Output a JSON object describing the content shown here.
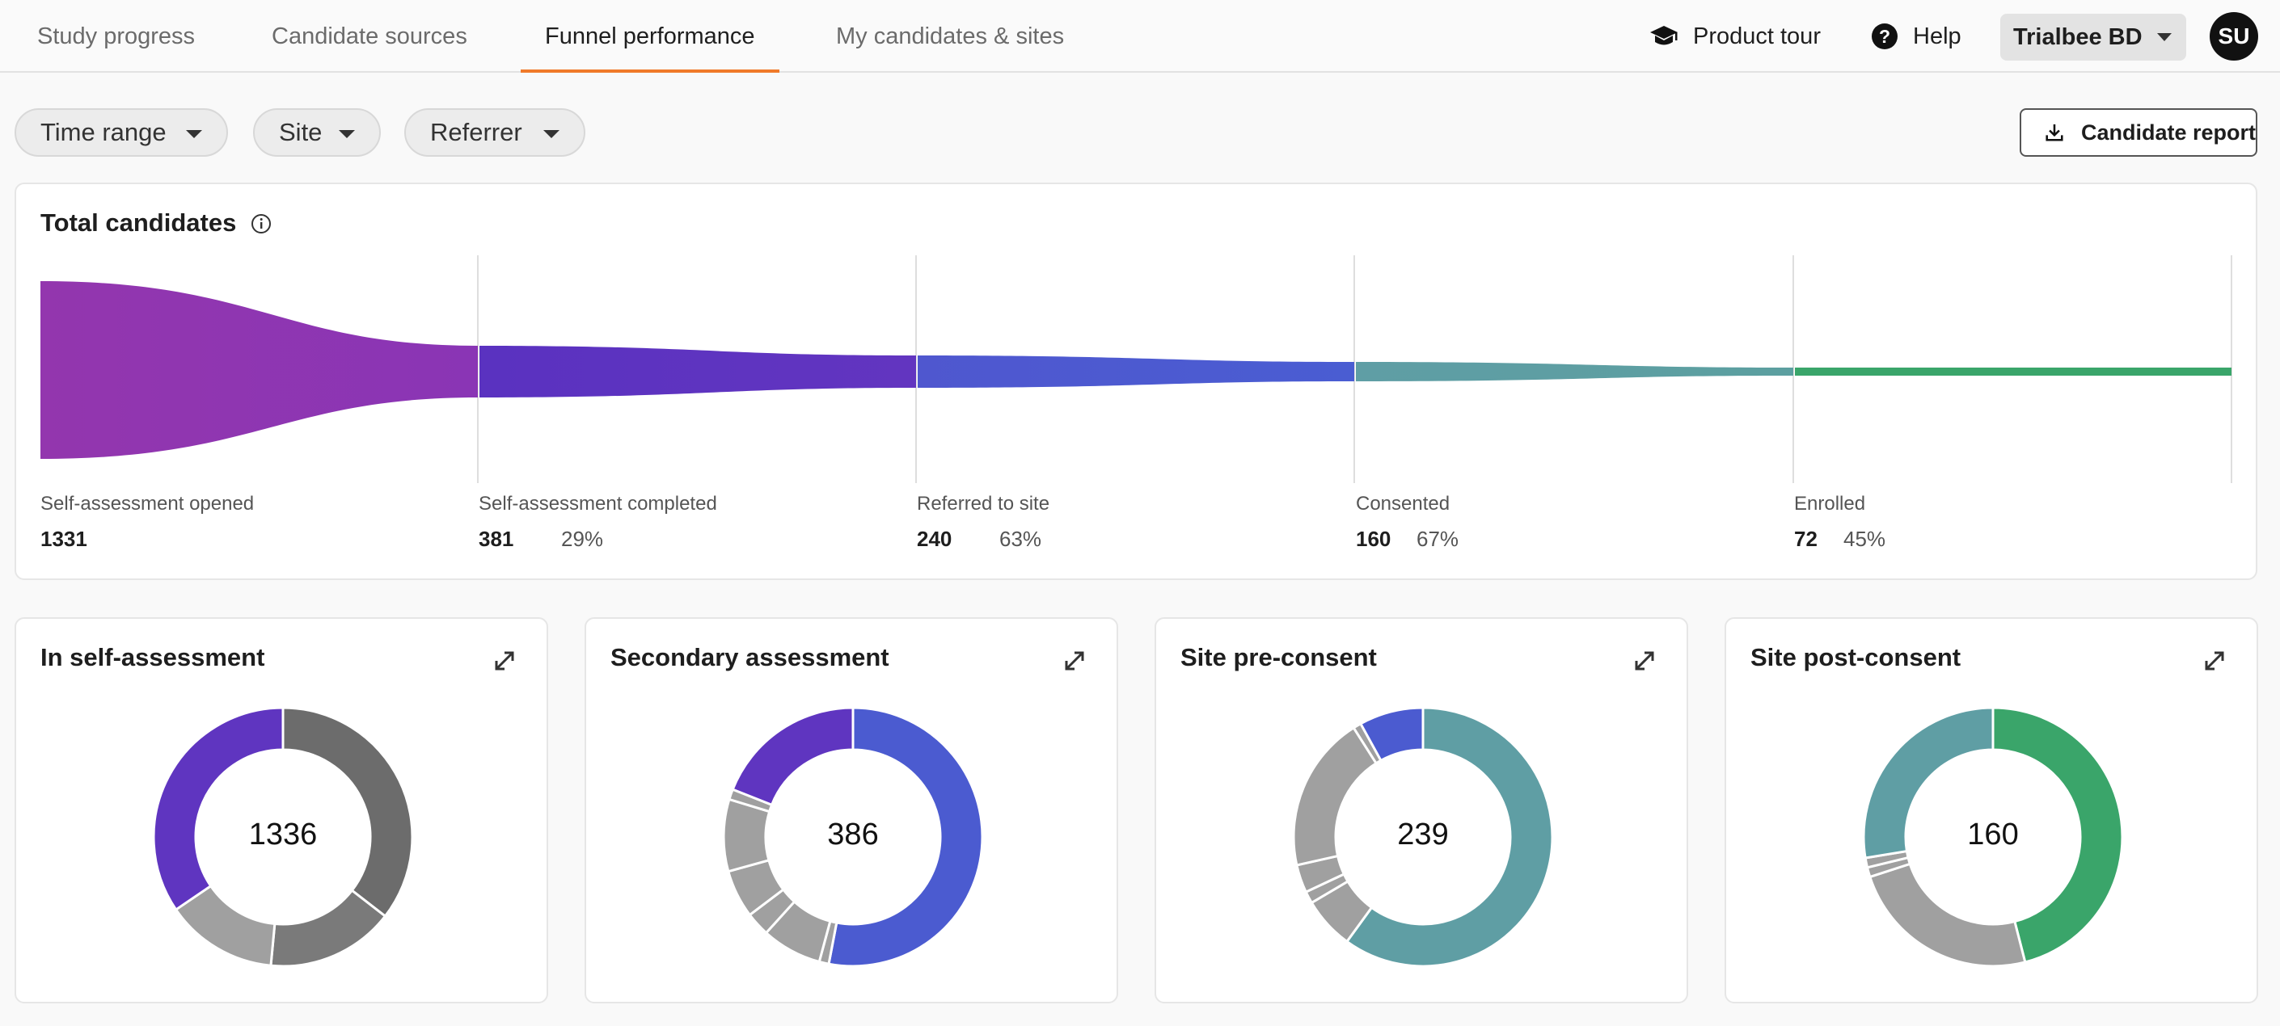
{
  "nav": {
    "tabs": [
      {
        "label": "Study progress"
      },
      {
        "label": "Candidate sources"
      },
      {
        "label": "Funnel performance"
      },
      {
        "label": "My candidates & sites"
      }
    ],
    "product_tour": "Product tour",
    "help": "Help",
    "org": "Trialbee BD",
    "avatar": "SU",
    "accent": "#f07a2a"
  },
  "filters": {
    "time_range": "Time range",
    "site": "Site",
    "referrer": "Referrer",
    "report_button": "Candidate report"
  },
  "funnel": {
    "title": "Total candidates",
    "stages": [
      {
        "label": "Self-assessment opened",
        "count": "1331",
        "pct": "",
        "color": "#9b36b0"
      },
      {
        "label": "Self-assessment completed",
        "count": "381",
        "pct": "29%",
        "color": "#5f35c0"
      },
      {
        "label": "Referred to site",
        "count": "240",
        "pct": "63%",
        "color": "#4b5bd0"
      },
      {
        "label": "Consented",
        "count": "160",
        "pct": "67%",
        "color": "#5f9ea4"
      },
      {
        "label": "Enrolled",
        "count": "72",
        "pct": "45%",
        "color": "#3aa56a"
      }
    ]
  },
  "donuts": [
    {
      "title": "In self-assessment",
      "value": "1336",
      "segments": [
        {
          "fraction": 0.355,
          "color": "#6c6c6c"
        },
        {
          "fraction": 0.16,
          "color": "#7a7a7a"
        },
        {
          "fraction": 0.14,
          "color": "#a0a0a0"
        },
        {
          "fraction": 0.345,
          "color": "#5f35c0"
        }
      ]
    },
    {
      "title": "Secondary assessment",
      "value": "386",
      "segments": [
        {
          "fraction": 0.53,
          "color": "#4b5bd0"
        },
        {
          "fraction": 0.012,
          "color": "#a0a0a0"
        },
        {
          "fraction": 0.075,
          "color": "#a0a0a0"
        },
        {
          "fraction": 0.03,
          "color": "#a0a0a0"
        },
        {
          "fraction": 0.06,
          "color": "#a0a0a0"
        },
        {
          "fraction": 0.09,
          "color": "#a0a0a0"
        },
        {
          "fraction": 0.013,
          "color": "#a0a0a0"
        },
        {
          "fraction": 0.19,
          "color": "#5f35c0"
        }
      ]
    },
    {
      "title": "Site pre-consent",
      "value": "239",
      "segments": [
        {
          "fraction": 0.6,
          "color": "#5f9ea4"
        },
        {
          "fraction": 0.065,
          "color": "#a0a0a0"
        },
        {
          "fraction": 0.015,
          "color": "#a0a0a0"
        },
        {
          "fraction": 0.035,
          "color": "#a0a0a0"
        },
        {
          "fraction": 0.195,
          "color": "#a0a0a0"
        },
        {
          "fraction": 0.01,
          "color": "#a0a0a0"
        },
        {
          "fraction": 0.08,
          "color": "#4b5bd0"
        }
      ]
    },
    {
      "title": "Site post-consent",
      "value": "160",
      "segments": [
        {
          "fraction": 0.46,
          "color": "#3aa56a"
        },
        {
          "fraction": 0.24,
          "color": "#a0a0a0"
        },
        {
          "fraction": 0.012,
          "color": "#a0a0a0"
        },
        {
          "fraction": 0.012,
          "color": "#a0a0a0"
        },
        {
          "fraction": 0.276,
          "color": "#5f9ea4"
        }
      ]
    }
  ]
}
